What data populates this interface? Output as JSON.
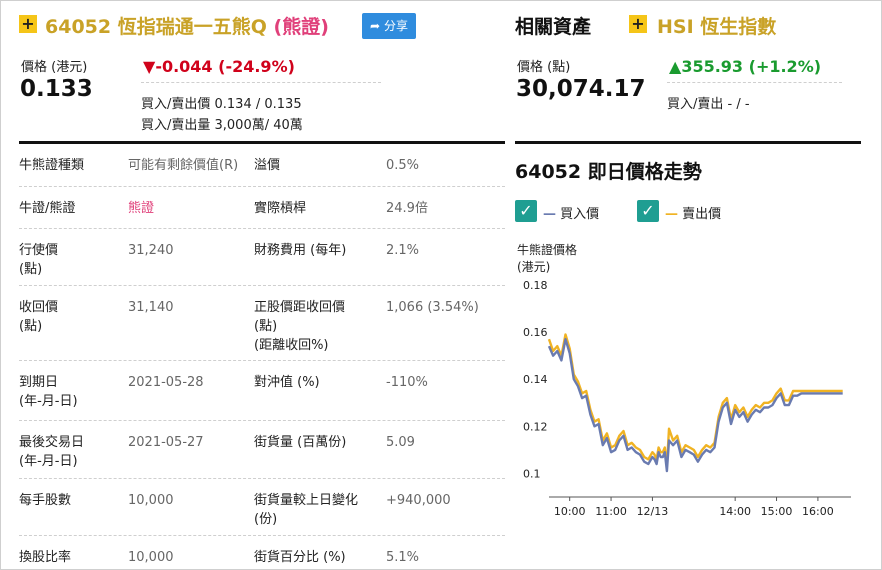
{
  "warrant": {
    "plus_icon": "plus-icon",
    "code": "64052",
    "name": "恆指瑞通一五熊Q",
    "type_tag": "(熊證)",
    "share_label": "分享",
    "share_icon": "share-arrow-icon",
    "price_label": "價格 (港元)",
    "price": "0.133",
    "change": "-0.044 (-24.9%)",
    "change_direction": "down",
    "bid_ask_price": "買入/賣出價 0.134 / 0.135",
    "bid_ask_volume": "買入/賣出量 3,000萬/ 40萬"
  },
  "related": {
    "heading": "相關資產",
    "plus_icon": "plus-icon",
    "code": "HSI",
    "name": "恆生指數",
    "price_label": "價格 (點)",
    "price": "30,074.17",
    "change": "355.93 (+1.2%)",
    "change_direction": "up",
    "bid_ask": "買入/賣出 - / -"
  },
  "details": [
    {
      "l1": "牛熊證種類",
      "v1": "可能有剩餘價值(R)",
      "l2": "溢價",
      "v2": "0.5%"
    },
    {
      "l1": "牛證/熊證",
      "v1": "熊證",
      "l2": "實際槓桿",
      "v2": "24.9倍"
    },
    {
      "l1": "行使價\n(點)",
      "v1": "31,240",
      "l2": "財務費用 (每年)",
      "v2": "2.1%"
    },
    {
      "l1": "收回價\n(點)",
      "v1": "31,140",
      "l2": "正股價距收回價\n(點)\n(距離收回%)",
      "v2": "1,066 (3.54%)"
    },
    {
      "l1": "到期日\n(年-月-日)",
      "v1": "2021-05-28",
      "l2": "對沖值 (%)",
      "v2": "-110%"
    },
    {
      "l1": "最後交易日\n(年-月-日)",
      "v1": "2021-05-27",
      "l2": "街貨量 (百萬份)",
      "v2": "5.09"
    },
    {
      "l1": "每手股數",
      "v1": "10,000",
      "l2": "街貨量較上日變化\n(份)",
      "v2": "+940,000"
    },
    {
      "l1": "換股比率",
      "v1": "10,000",
      "l2": "街貨百分比 (%)",
      "v2": "5.1%"
    }
  ],
  "chart_data": {
    "type": "line",
    "title": "64052 即日價格走勢",
    "ylabel": "牛熊證價格\n(港元)",
    "ylim": [
      0.09,
      0.18
    ],
    "yticks": [
      "0.18",
      "0.16",
      "0.14",
      "0.12",
      "0.1"
    ],
    "ytick_values": [
      0.18,
      0.16,
      0.14,
      0.12,
      0.1
    ],
    "xticks": [
      "10:00",
      "11:00",
      "12/13",
      "14:00",
      "15:00",
      "16:00"
    ],
    "xtick_values": [
      10.0,
      11.0,
      12.0,
      14.0,
      15.0,
      16.0
    ],
    "colors": {
      "bid": "#6a7bb0",
      "ask": "#f0b323",
      "check": "#1f9e92"
    },
    "series": [
      {
        "name": "買入價",
        "x": [
          9.5,
          9.6,
          9.7,
          9.8,
          9.9,
          10.0,
          10.1,
          10.2,
          10.3,
          10.4,
          10.5,
          10.6,
          10.7,
          10.8,
          10.9,
          11.0,
          11.1,
          11.2,
          11.3,
          11.4,
          11.5,
          11.6,
          11.7,
          11.8,
          11.9,
          12.0,
          12.05,
          12.1,
          12.15,
          12.2,
          12.25,
          12.3,
          12.35,
          12.4,
          12.5,
          12.6,
          12.7,
          12.8,
          12.9,
          13.0,
          13.1,
          13.2,
          13.3,
          13.4,
          13.5,
          13.6,
          13.7,
          13.8,
          13.9,
          14.0,
          14.1,
          14.2,
          14.3,
          14.4,
          14.5,
          14.6,
          14.7,
          14.8,
          14.9,
          15.0,
          15.1,
          15.2,
          15.3,
          15.4,
          15.5,
          15.6,
          15.7,
          15.8,
          15.9,
          16.0,
          16.2,
          16.4,
          16.6
        ],
        "values": [
          0.154,
          0.15,
          0.152,
          0.148,
          0.157,
          0.151,
          0.14,
          0.137,
          0.132,
          0.133,
          0.125,
          0.12,
          0.121,
          0.112,
          0.115,
          0.109,
          0.11,
          0.114,
          0.116,
          0.11,
          0.111,
          0.109,
          0.108,
          0.105,
          0.104,
          0.107,
          0.106,
          0.104,
          0.109,
          0.107,
          0.107,
          0.109,
          0.101,
          0.114,
          0.112,
          0.114,
          0.107,
          0.11,
          0.109,
          0.108,
          0.105,
          0.108,
          0.11,
          0.109,
          0.111,
          0.122,
          0.128,
          0.13,
          0.121,
          0.127,
          0.124,
          0.126,
          0.122,
          0.125,
          0.127,
          0.126,
          0.128,
          0.128,
          0.129,
          0.132,
          0.134,
          0.129,
          0.129,
          0.133,
          0.133,
          0.134,
          0.134,
          0.134,
          0.134,
          0.134,
          0.134,
          0.134,
          0.134
        ]
      },
      {
        "name": "賣出價",
        "x": [
          9.5,
          9.6,
          9.7,
          9.8,
          9.9,
          10.0,
          10.1,
          10.2,
          10.3,
          10.4,
          10.5,
          10.6,
          10.7,
          10.8,
          10.9,
          11.0,
          11.1,
          11.2,
          11.3,
          11.4,
          11.5,
          11.6,
          11.7,
          11.8,
          11.9,
          12.0,
          12.05,
          12.1,
          12.15,
          12.2,
          12.25,
          12.3,
          12.35,
          12.4,
          12.5,
          12.6,
          12.7,
          12.8,
          12.9,
          13.0,
          13.1,
          13.2,
          13.3,
          13.4,
          13.5,
          13.6,
          13.7,
          13.8,
          13.9,
          14.0,
          14.1,
          14.2,
          14.3,
          14.4,
          14.5,
          14.6,
          14.7,
          14.8,
          14.9,
          15.0,
          15.1,
          15.2,
          15.3,
          15.4,
          15.5,
          15.6,
          15.7,
          15.8,
          15.9,
          16.0,
          16.2,
          16.4,
          16.6
        ],
        "values": [
          0.157,
          0.152,
          0.154,
          0.15,
          0.159,
          0.153,
          0.142,
          0.139,
          0.134,
          0.135,
          0.127,
          0.122,
          0.123,
          0.114,
          0.117,
          0.111,
          0.112,
          0.116,
          0.118,
          0.112,
          0.113,
          0.111,
          0.11,
          0.107,
          0.106,
          0.109,
          0.108,
          0.106,
          0.111,
          0.109,
          0.109,
          0.111,
          0.103,
          0.119,
          0.114,
          0.116,
          0.109,
          0.112,
          0.111,
          0.11,
          0.107,
          0.11,
          0.112,
          0.111,
          0.113,
          0.124,
          0.13,
          0.132,
          0.123,
          0.129,
          0.126,
          0.128,
          0.124,
          0.127,
          0.129,
          0.128,
          0.13,
          0.13,
          0.131,
          0.134,
          0.136,
          0.131,
          0.131,
          0.135,
          0.135,
          0.135,
          0.135,
          0.135,
          0.135,
          0.135,
          0.135,
          0.135,
          0.135
        ]
      }
    ]
  }
}
